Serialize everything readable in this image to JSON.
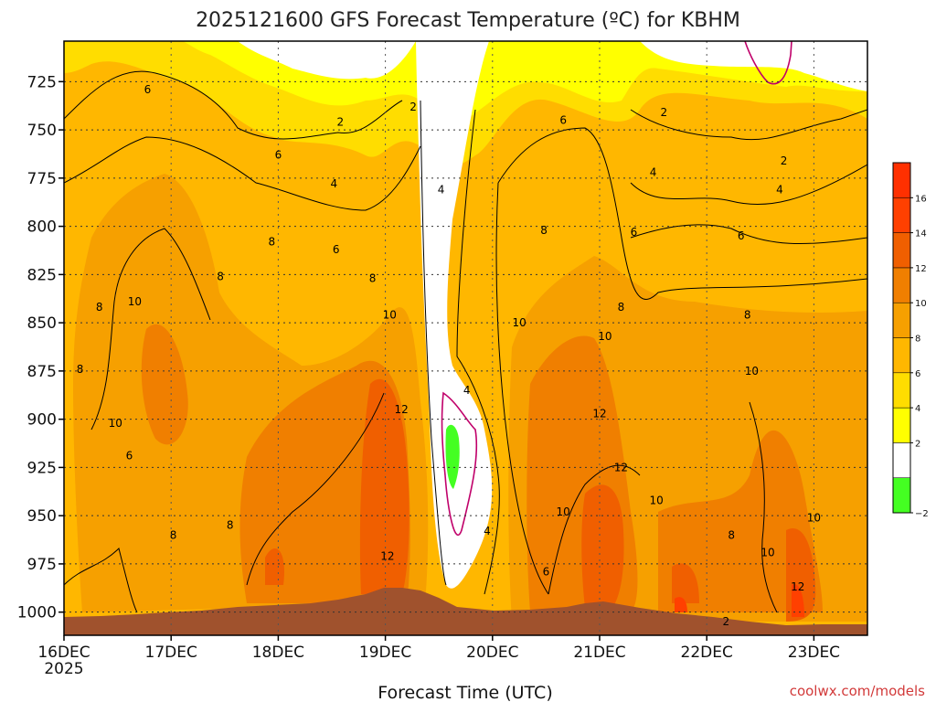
{
  "title": "2025121600 GFS Forecast Temperature (ºC) for KBHM",
  "xlabel": "Forecast Time (UTC)",
  "credit": "coolwx.com/models",
  "chart_data": {
    "type": "heatmap",
    "title": "2025121600 GFS Forecast Temperature (ºC) for KBHM",
    "xlabel": "Forecast Time (UTC)",
    "ylabel": "",
    "x_ticks": [
      "16DEC",
      "17DEC",
      "18DEC",
      "19DEC",
      "20DEC",
      "21DEC",
      "22DEC",
      "23DEC"
    ],
    "x_tick_sub": "2025",
    "xlim": [
      0,
      7.5
    ],
    "y_ticks": [
      725,
      750,
      775,
      800,
      825,
      850,
      875,
      900,
      925,
      950,
      975,
      1000
    ],
    "ylim": [
      1012,
      704
    ],
    "grid": true,
    "colorbar": {
      "levels": [
        -2,
        0,
        2,
        4,
        6,
        8,
        10,
        12,
        14,
        16,
        18
      ],
      "tick_labels": [
        "−2",
        "2",
        "4",
        "6",
        "8",
        "10",
        "12",
        "14",
        "16"
      ],
      "colors": [
        "#44ff22",
        "#ffffff",
        "#ffff00",
        "#ffdd00",
        "#ffb700",
        "#f6a000",
        "#f07f00",
        "#f05f00",
        "#ff4000",
        "#ff3000"
      ]
    },
    "contour_labels": [
      {
        "t": 0.78,
        "p": 729,
        "text": "6"
      },
      {
        "t": 3.26,
        "p": 738,
        "text": "2"
      },
      {
        "t": 2.58,
        "p": 746,
        "text": "2"
      },
      {
        "t": 4.66,
        "p": 745,
        "text": "6"
      },
      {
        "t": 5.6,
        "p": 741,
        "text": "2"
      },
      {
        "t": 2.0,
        "p": 763,
        "text": "6"
      },
      {
        "t": 2.52,
        "p": 778,
        "text": "4"
      },
      {
        "t": 3.52,
        "p": 781,
        "text": "4"
      },
      {
        "t": 5.5,
        "p": 772,
        "text": "4"
      },
      {
        "t": 6.68,
        "p": 781,
        "text": "4"
      },
      {
        "t": 6.72,
        "p": 766,
        "text": "2"
      },
      {
        "t": 4.48,
        "p": 802,
        "text": "8"
      },
      {
        "t": 5.32,
        "p": 803,
        "text": "6"
      },
      {
        "t": 6.32,
        "p": 805,
        "text": "6"
      },
      {
        "t": 1.94,
        "p": 808,
        "text": "8"
      },
      {
        "t": 2.54,
        "p": 812,
        "text": "6"
      },
      {
        "t": 1.46,
        "p": 826,
        "text": "8"
      },
      {
        "t": 2.88,
        "p": 827,
        "text": "8"
      },
      {
        "t": 0.66,
        "p": 839,
        "text": "10"
      },
      {
        "t": 0.33,
        "p": 842,
        "text": "8"
      },
      {
        "t": 3.04,
        "p": 846,
        "text": "10"
      },
      {
        "t": 5.2,
        "p": 842,
        "text": "8"
      },
      {
        "t": 6.38,
        "p": 846,
        "text": "8"
      },
      {
        "t": 4.25,
        "p": 850,
        "text": "10"
      },
      {
        "t": 5.05,
        "p": 857,
        "text": "10"
      },
      {
        "t": 0.15,
        "p": 874,
        "text": "8"
      },
      {
        "t": 6.42,
        "p": 875,
        "text": "10"
      },
      {
        "t": 3.15,
        "p": 895,
        "text": "12"
      },
      {
        "t": 5.0,
        "p": 897,
        "text": "12"
      },
      {
        "t": 0.48,
        "p": 902,
        "text": "10"
      },
      {
        "t": 3.76,
        "p": 885,
        "text": "4"
      },
      {
        "t": 0.61,
        "p": 919,
        "text": "6"
      },
      {
        "t": 5.2,
        "p": 925,
        "text": "12"
      },
      {
        "t": 5.53,
        "p": 942,
        "text": "10"
      },
      {
        "t": 4.66,
        "p": 948,
        "text": "10"
      },
      {
        "t": 7.0,
        "p": 951,
        "text": "10"
      },
      {
        "t": 1.55,
        "p": 955,
        "text": "8"
      },
      {
        "t": 1.02,
        "p": 960,
        "text": "8"
      },
      {
        "t": 6.23,
        "p": 960,
        "text": "8"
      },
      {
        "t": 3.95,
        "p": 958,
        "text": "4"
      },
      {
        "t": 6.57,
        "p": 969,
        "text": "10"
      },
      {
        "t": 3.02,
        "p": 971,
        "text": "12"
      },
      {
        "t": 4.5,
        "p": 979,
        "text": "6"
      },
      {
        "t": 6.85,
        "p": 987,
        "text": "12"
      },
      {
        "t": 6.18,
        "p": 1005,
        "text": "2"
      }
    ]
  }
}
